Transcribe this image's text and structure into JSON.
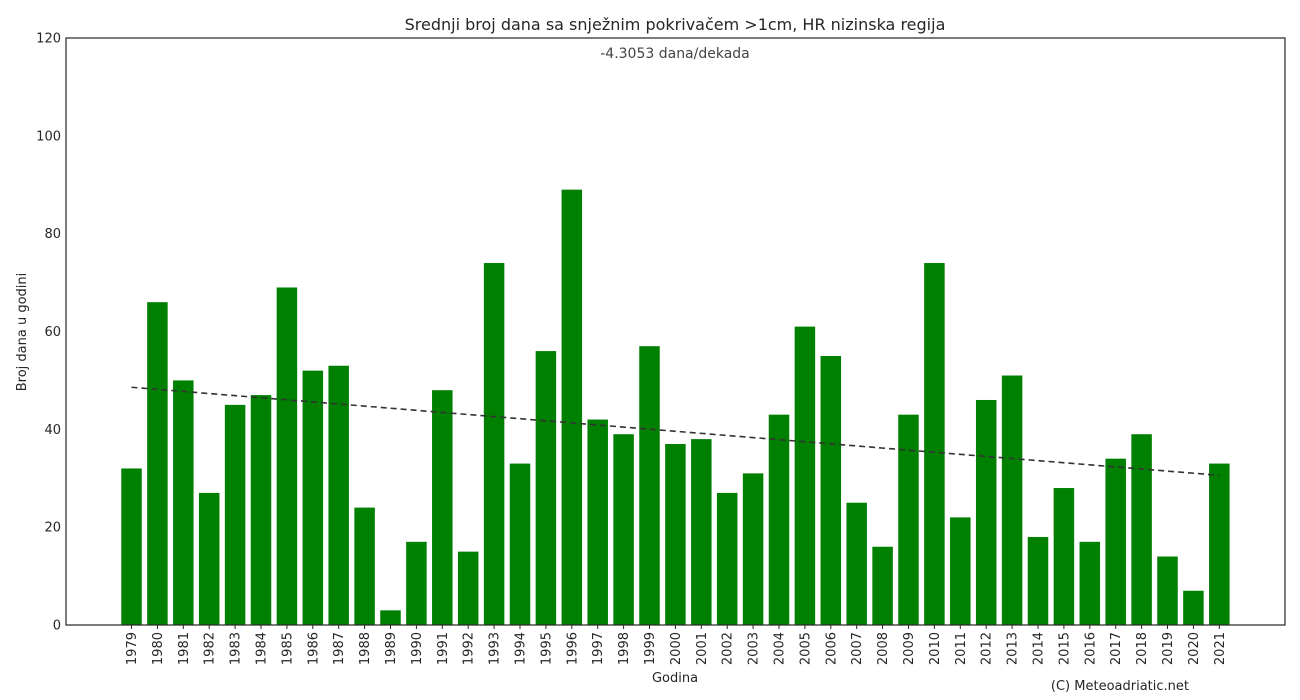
{
  "chart_data": {
    "type": "bar",
    "title": "Srednji broj dana sa snježnim pokrivačem >1cm, HR nizinska regija",
    "subtitle": "-4.3053 dana/dekada",
    "xlabel": "Godina",
    "ylabel": "Broj dana u godini",
    "ylim": [
      0,
      120
    ],
    "yticks": [
      0,
      20,
      40,
      60,
      80,
      100,
      120
    ],
    "categories": [
      "1979",
      "1980",
      "1981",
      "1982",
      "1983",
      "1984",
      "1985",
      "1986",
      "1987",
      "1988",
      "1989",
      "1990",
      "1991",
      "1992",
      "1993",
      "1994",
      "1995",
      "1996",
      "1997",
      "1998",
      "1999",
      "2000",
      "2001",
      "2002",
      "2003",
      "2004",
      "2005",
      "2006",
      "2007",
      "2008",
      "2009",
      "2010",
      "2011",
      "2012",
      "2013",
      "2014",
      "2015",
      "2016",
      "2017",
      "2018",
      "2019",
      "2020",
      "2021"
    ],
    "values": [
      32,
      66,
      50,
      27,
      45,
      47,
      69,
      52,
      53,
      24,
      3,
      17,
      48,
      15,
      74,
      33,
      56,
      89,
      42,
      39,
      57,
      37,
      38,
      27,
      31,
      43,
      61,
      55,
      25,
      16,
      43,
      74,
      22,
      46,
      51,
      18,
      28,
      17,
      34,
      39,
      14,
      7,
      33
    ],
    "trendline": {
      "start_value": 48.6,
      "end_value": 30.6,
      "style": "dashed"
    },
    "bar_color": "#008000",
    "trend_color": "#333333",
    "grid": false,
    "legend": "none"
  },
  "credit": "(C) Meteoadriatic.net"
}
